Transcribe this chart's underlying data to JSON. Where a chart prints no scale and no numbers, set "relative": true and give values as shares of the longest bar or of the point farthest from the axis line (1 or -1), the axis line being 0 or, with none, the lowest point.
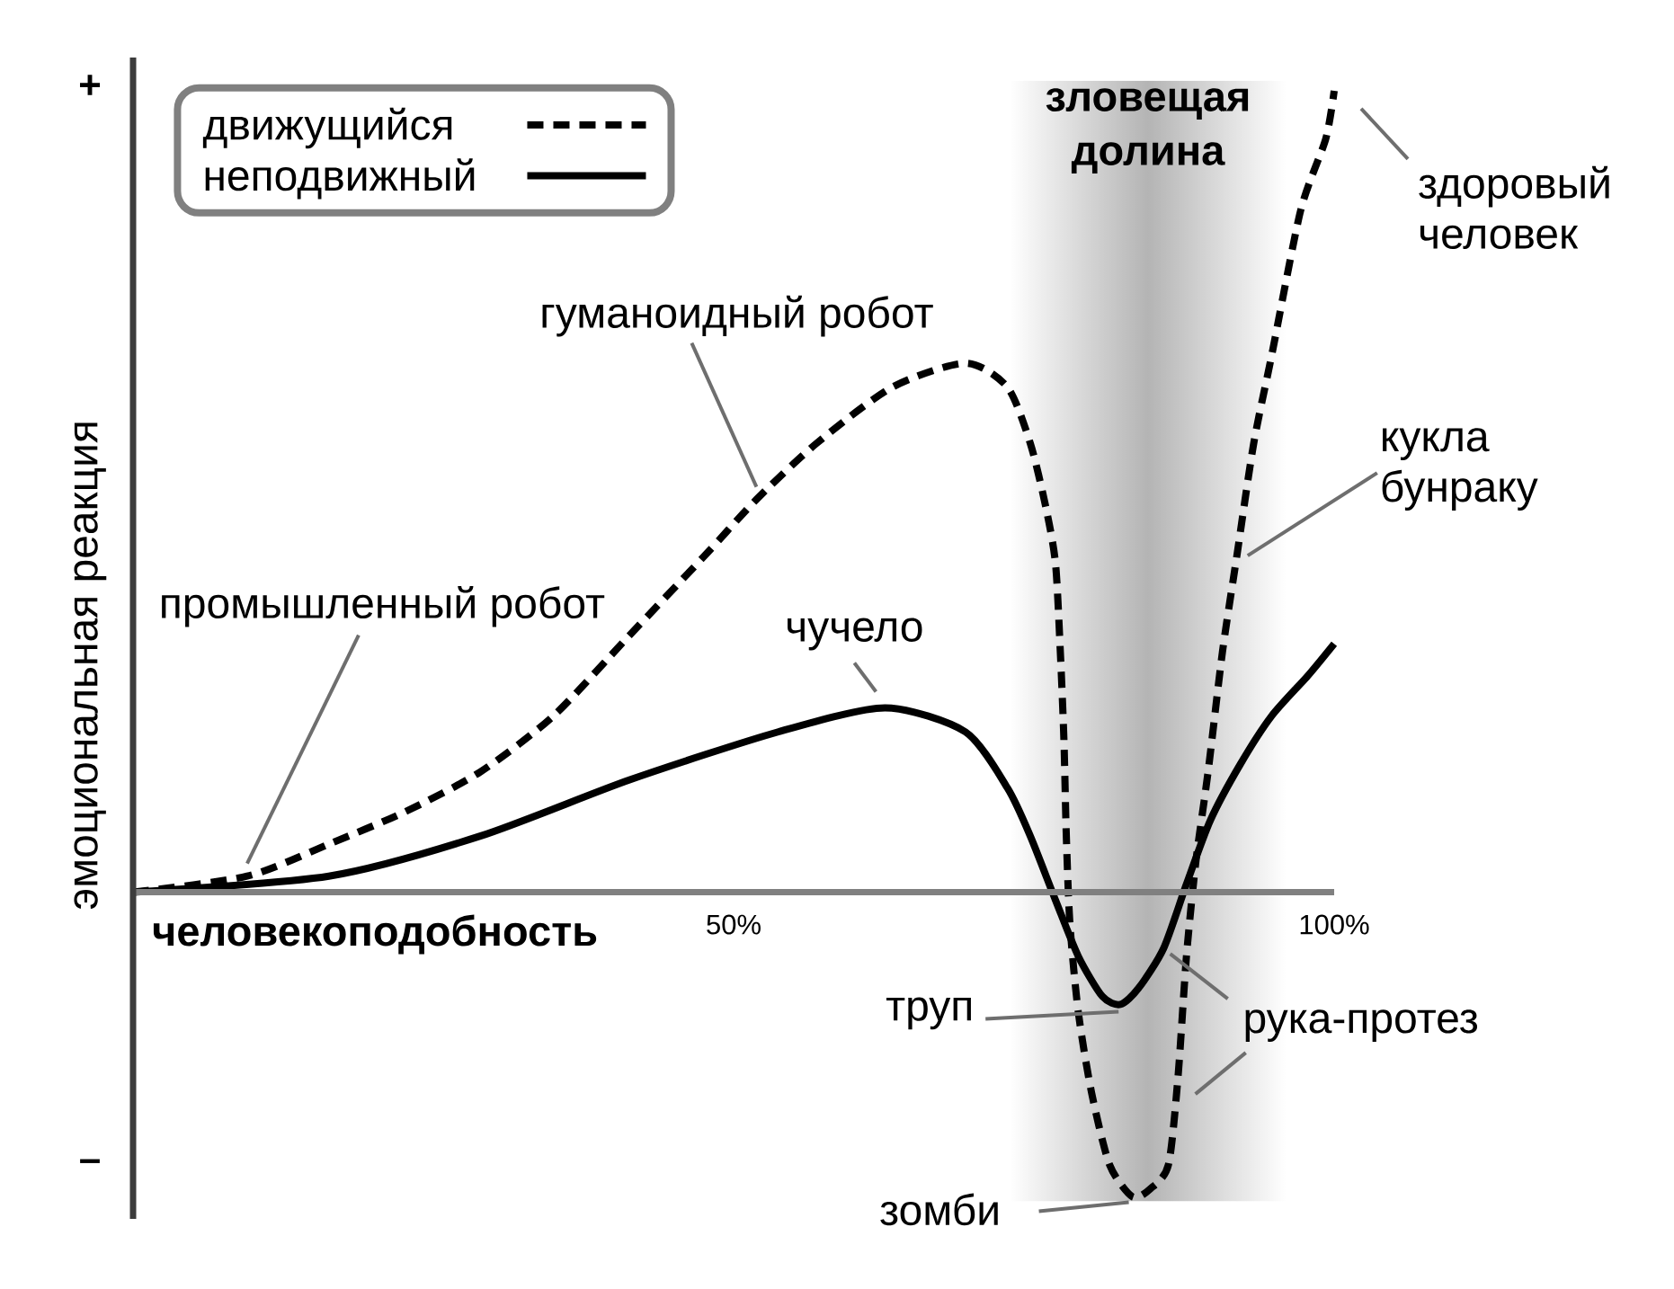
{
  "chart_data": {
    "type": "line",
    "relative": true,
    "xlabel": "человекоподобность",
    "ylabel": "эмоциональная реакция",
    "xlim": [
      0,
      100
    ],
    "xticks": [
      {
        "value": 50,
        "label": "50%"
      },
      {
        "value": 100,
        "label": "100%"
      }
    ],
    "tick_labels": "x",
    "legend": "top left",
    "series": [
      {
        "name": "движущийся",
        "color": "#000000",
        "line_style": "dashed",
        "x": [
          0,
          9.5,
          16.3,
          22.6,
          28.9,
          35.0,
          41.3,
          47.6,
          51.9,
          56.9,
          63.2,
          69.3,
          72.8,
          74.7,
          76.0,
          76.8,
          77.2,
          77.5,
          77.7,
          78.0,
          78.7,
          79.8,
          81.3,
          83.2,
          84.7,
          86.2,
          87.0,
          87.7,
          88.5,
          89.5,
          90.7,
          91.9,
          93.3,
          94.8,
          97.2,
          99.3,
          100
        ],
        "values": [
          0,
          0.02,
          0.06,
          0.1,
          0.15,
          0.22,
          0.32,
          0.42,
          0.49,
          0.56,
          0.63,
          0.66,
          0.63,
          0.56,
          0.48,
          0.41,
          0.3,
          0.19,
          0.07,
          -0.04,
          -0.15,
          -0.25,
          -0.34,
          -0.38,
          -0.37,
          -0.34,
          -0.23,
          -0.08,
          0.04,
          0.15,
          0.3,
          0.42,
          0.56,
          0.67,
          0.85,
          0.94,
          1.0
        ]
      },
      {
        "name": "неподвижный",
        "color": "#000000",
        "line_style": "solid",
        "x": [
          0,
          16.3,
          28.9,
          41.3,
          53.7,
          62.6,
          69.3,
          72.8,
          74.7,
          76.8,
          78.7,
          80.7,
          82.2,
          83.7,
          85.8,
          87.7,
          89.7,
          92.2,
          94.8,
          97.8,
          100
        ],
        "values": [
          0,
          0.02,
          0.07,
          0.14,
          0.2,
          0.23,
          0.2,
          0.13,
          0.07,
          -0.01,
          -0.08,
          -0.13,
          -0.14,
          -0.12,
          -0.07,
          0.01,
          0.09,
          0.16,
          0.22,
          0.27,
          0.31
        ]
      }
    ],
    "bands": [
      {
        "axis": "x",
        "from": 73,
        "to": 96,
        "label": "зловещая долина",
        "color": "#b4b4b4"
      }
    ],
    "annotations": [
      "+",
      "–",
      {
        "text": "гуманоидный робот",
        "x": 51.9,
        "y": 0.49
      },
      {
        "text": "промышленный робот",
        "x": 9.5,
        "y": 0.02
      },
      {
        "text": "чучело",
        "x": 62.6,
        "y": 0.23
      },
      {
        "text": "труп",
        "x": 82.2,
        "y": -0.14
      },
      {
        "text": "зомби",
        "x": 83.2,
        "y": -0.38
      },
      {
        "text": "рука-протез",
        "x": 86.2,
        "y": -0.05
      },
      {
        "text": "кукла бунраку",
        "x": 91.9,
        "y": 0.42
      },
      {
        "text": "здоровый человек",
        "x": 100,
        "y": 1.0
      }
    ]
  }
}
